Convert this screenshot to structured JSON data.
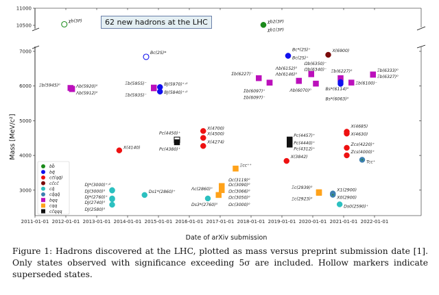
{
  "banner": "62 new hadrons at the LHC",
  "caption": "Figure 1: Hadrons discovered at the LHC, plotted as mass versus preprint submission date [1]. Only states observed with significance exceeding 5σ are included. Hollow markers indicate superseded states.",
  "chart_data": {
    "type": "scatter",
    "title": "",
    "xlabel": "Date of arXiv submission",
    "ylabel": "Mass [MeV/c²]",
    "x_ticks": [
      "2011-01-01",
      "2012-01-01",
      "2013-01-01",
      "2014-01-01",
      "2015-01-01",
      "2016-01-01",
      "2017-01-01",
      "2018-01-01",
      "2019-01-01",
      "2020-01-01",
      "2021-01-01",
      "2022-01-01"
    ],
    "y_ticks_main": [
      3000,
      4000,
      5000,
      6000,
      7000
    ],
    "y_ticks_top": [
      10500,
      11000
    ],
    "xlim": [
      2011.0,
      2022.5
    ],
    "ylim_main": [
      2270,
      7050
    ],
    "ylim_top": [
      10300,
      11000
    ],
    "broken_axis": true,
    "legend_position": "lower-left",
    "categories": [
      {
        "key": "bb",
        "label": "bb̄",
        "color": "#1a8a1a",
        "shape": "circle"
      },
      {
        "key": "bq",
        "label": "bq̄",
        "color": "#1010ee",
        "shape": "circle"
      },
      {
        "key": "ccqq",
        "label": "cc̄(qq̄)",
        "color": "#ee1111",
        "shape": "circle"
      },
      {
        "key": "cccc",
        "label": "cc̄cc̄",
        "color": "#7a0a0a",
        "shape": "circle"
      },
      {
        "key": "cq",
        "label": "cq̄",
        "color": "#2cc0c0",
        "shape": "circle"
      },
      {
        "key": "cqqq",
        "label": "cq̄qq̄",
        "color": "#3d7fb0",
        "shape": "circle"
      },
      {
        "key": "bqq",
        "label": "bqq",
        "color": "#bb10bb",
        "shape": "square"
      },
      {
        "key": "cqq",
        "label": "cqq",
        "color": "#ffa21a",
        "shape": "square"
      },
      {
        "key": "ccqqq",
        "label": "cc̄qqq",
        "color": "#111111",
        "shape": "square"
      }
    ],
    "points": [
      {
        "cat": "bb",
        "date": 2011.95,
        "mass": 10530,
        "hollow": true,
        "label": "χb(3P)",
        "lx": 6,
        "ly": -3
      },
      {
        "cat": "bb",
        "date": 2018.4,
        "mass": 10512,
        "hollow": false,
        "label": "χb2(3P)",
        "lx": 6,
        "ly": -3
      },
      {
        "cat": "bb",
        "date": 2018.4,
        "mass": 10513,
        "hollow": false,
        "label": "χb1(3P)",
        "lx": 6,
        "ly": 9
      },
      {
        "cat": "bqq",
        "date": 2012.15,
        "mass": 5945,
        "hollow": false,
        "label": "Ξb(5945)⁰",
        "lx": -46,
        "ly": -2
      },
      {
        "cat": "bqq",
        "date": 2012.2,
        "mass": 5920,
        "hollow": false,
        "label": "Λb(5920)⁰",
        "lx": 6,
        "ly": -2
      },
      {
        "cat": "bqq",
        "date": 2012.2,
        "mass": 5912,
        "hollow": false,
        "label": "Λb(5912)⁰",
        "lx": 6,
        "ly": 8
      },
      {
        "cat": "bqq",
        "date": 2014.85,
        "mass": 5955,
        "hollow": false,
        "label": "Ξb(5955)⁻",
        "lx": -42,
        "ly": -4
      },
      {
        "cat": "bqq",
        "date": 2014.85,
        "mass": 5935,
        "hollow": false,
        "label": "Ξb(5935)⁻",
        "lx": -42,
        "ly": 12
      },
      {
        "cat": "bq",
        "date": 2014.6,
        "mass": 6842,
        "hollow": true,
        "label": "Bc(2S)*",
        "lx": 6,
        "ly": -4
      },
      {
        "cat": "bq",
        "date": 2015.05,
        "mass": 5970,
        "hollow": false,
        "label": "BJ(5970)⁺˒⁰",
        "lx": 6,
        "ly": -2
      },
      {
        "cat": "bq",
        "date": 2015.05,
        "mass": 5840,
        "hollow": false,
        "label": "BJ(5840)⁺˒⁰",
        "lx": 6,
        "ly": 3
      },
      {
        "cat": "ccqq",
        "date": 2013.73,
        "mass": 4146,
        "hollow": false,
        "label": "X(4140)",
        "lx": 6,
        "ly": -2
      },
      {
        "cat": "ccqqq",
        "date": 2015.6,
        "mass": 4450,
        "hollow": true,
        "label": "Pc(4450)⁺",
        "lx": -26,
        "ly": -8
      },
      {
        "cat": "ccqqq",
        "date": 2015.6,
        "mass": 4380,
        "hollow": false,
        "label": "Pc(4380)⁺",
        "lx": -26,
        "ly": 12
      },
      {
        "cat": "ccqq",
        "date": 2016.45,
        "mass": 4704,
        "hollow": false,
        "label": "X(4700)",
        "lx": 6,
        "ly": -2
      },
      {
        "cat": "ccqq",
        "date": 2016.45,
        "mass": 4506,
        "hollow": false,
        "label": "X(4500)",
        "lx": 6,
        "ly": -4
      },
      {
        "cat": "ccqq",
        "date": 2016.45,
        "mass": 4273,
        "hollow": false,
        "label": "X(4274)",
        "lx": 6,
        "ly": -4
      },
      {
        "cat": "cq",
        "date": 2013.5,
        "mass": 3000,
        "hollow": false,
        "label": "DJ*(3000)⁺˒⁰",
        "lx": -40,
        "ly": -6
      },
      {
        "cat": "cq",
        "date": 2013.5,
        "mass": 2990,
        "hollow": false,
        "label": "DJ(3000)⁰",
        "lx": -40,
        "ly": 3
      },
      {
        "cat": "cq",
        "date": 2013.5,
        "mass": 2760,
        "hollow": false,
        "label": "DJ*(2760)⁺",
        "lx": -40,
        "ly": -2
      },
      {
        "cat": "cq",
        "date": 2013.5,
        "mass": 2740,
        "hollow": false,
        "label": "DJ(2740)⁰",
        "lx": -40,
        "ly": 7
      },
      {
        "cat": "cq",
        "date": 2013.5,
        "mass": 2580,
        "hollow": false,
        "label": "DJ(2580)⁰",
        "lx": -40,
        "ly": 9
      },
      {
        "cat": "cq",
        "date": 2014.55,
        "mass": 2860,
        "hollow": false,
        "label": "Ds1*(2860)⁺",
        "lx": 6,
        "ly": -3
      },
      {
        "cat": "cq",
        "date": 2016.6,
        "mass": 2760,
        "hollow": false,
        "label": "Ds3*(2760)⁰",
        "lx": -24,
        "ly": 11
      },
      {
        "cqq": true,
        "cat": "cqq",
        "date": 2016.6,
        "mass": 2860,
        "hollow": false,
        "label": "Λc(2860)⁺",
        "lx": -24,
        "ly": -7,
        "nomark": true
      },
      {
        "cat": "cqq",
        "date": 2017.05,
        "mass": 3119,
        "hollow": false,
        "label": "Ωc(3119)⁰",
        "lx": 10,
        "ly": -7
      },
      {
        "cat": "cqq",
        "date": 2017.05,
        "mass": 3090,
        "hollow": false,
        "label": "Ωc(3090)⁰",
        "lx": 10,
        "ly": -1
      },
      {
        "cat": "cqq",
        "date": 2017.05,
        "mass": 3066,
        "hollow": false,
        "label": "Ωc(3066)⁰",
        "lx": 10,
        "ly": 5
      },
      {
        "cat": "cqq",
        "date": 2017.05,
        "mass": 3050,
        "hollow": false,
        "label": "Ωc(3050)⁰",
        "lx": 10,
        "ly": 13
      },
      {
        "cat": "cqq",
        "date": 2017.05,
        "mass": 3000,
        "hollow": false,
        "label": "Ωc(3000)⁰",
        "lx": 10,
        "ly": 23
      },
      {
        "cat": "cqq",
        "date": 2016.95,
        "mass": 2860,
        "hollow": false,
        "label": "",
        "lx": 0,
        "ly": 0
      },
      {
        "cat": "cqq",
        "date": 2017.5,
        "mass": 3621,
        "hollow": false,
        "label": "Ξcc⁺⁺",
        "lx": 6,
        "ly": -3
      },
      {
        "cat": "ccqq",
        "date": 2019.15,
        "mass": 3842,
        "hollow": false,
        "label": "X(3842)",
        "lx": 6,
        "ly": -4
      },
      {
        "cat": "ccqqq",
        "date": 2019.25,
        "mass": 4457,
        "hollow": false,
        "label": "Pc(4457)⁺",
        "lx": 6,
        "ly": -4
      },
      {
        "cat": "ccqqq",
        "date": 2019.25,
        "mass": 4440,
        "hollow": false,
        "label": "Pc(4440)⁺",
        "lx": 6,
        "ly": 6
      },
      {
        "cat": "ccqqq",
        "date": 2019.25,
        "mass": 4312,
        "hollow": false,
        "label": "Pc(4312)⁺",
        "lx": 6,
        "ly": 4
      },
      {
        "cat": "ccqq",
        "date": 2021.1,
        "mass": 4684,
        "hollow": false,
        "label": "X(4685)",
        "lx": 6,
        "ly": -6
      },
      {
        "cat": "ccqq",
        "date": 2021.1,
        "mass": 4630,
        "hollow": false,
        "label": "X(4630)",
        "lx": 6,
        "ly": 3
      },
      {
        "cat": "ccqq",
        "date": 2021.1,
        "mass": 4220,
        "hollow": false,
        "label": "Zcs(4220)⁺",
        "lx": 6,
        "ly": -3
      },
      {
        "cat": "ccqq",
        "date": 2021.1,
        "mass": 4003,
        "hollow": false,
        "label": "Zcs(4000)⁺",
        "lx": 6,
        "ly": -3
      },
      {
        "cat": "cqqq",
        "date": 2021.6,
        "mass": 3875,
        "hollow": false,
        "label": "Tcc⁺",
        "lx": 6,
        "ly": 5
      },
      {
        "cat": "cqq",
        "date": 2020.2,
        "mass": 2939,
        "hollow": false,
        "label": "Ξc(2939)⁰",
        "lx": -40,
        "ly": -5
      },
      {
        "cat": "cqq",
        "date": 2020.2,
        "mass": 2923,
        "hollow": false,
        "label": "Ξc(2923)⁰",
        "lx": -40,
        "ly": 11
      },
      {
        "cat": "cqqq",
        "date": 2020.65,
        "mass": 2904,
        "hollow": false,
        "label": "X1(2900)",
        "lx": 6,
        "ly": -3
      },
      {
        "cat": "cqqq",
        "date": 2020.65,
        "mass": 2866,
        "hollow": false,
        "label": "X0(2900)",
        "lx": 6,
        "ly": 6
      },
      {
        "cat": "cq",
        "date": 2020.87,
        "mass": 2591,
        "hollow": false,
        "label": "Ds0(2590)⁺",
        "lx": 6,
        "ly": 5
      },
      {
        "cat": "bq",
        "date": 2019.2,
        "mass": 6872,
        "hollow": false,
        "label": "Bc*(2S)⁺",
        "lx": 6,
        "ly": -7
      },
      {
        "cat": "bq",
        "date": 2019.2,
        "mass": 6871,
        "hollow": false,
        "label": "Bc(2S)⁺",
        "lx": 6,
        "ly": 5
      },
      {
        "cat": "cccc",
        "date": 2020.5,
        "mass": 6900,
        "hollow": false,
        "label": "X(6900)",
        "lx": 6,
        "ly": -4
      },
      {
        "cat": "bqq",
        "date": 2018.25,
        "mass": 6227,
        "hollow": false,
        "label": "Σb(6227)⁻",
        "lx": -40,
        "ly": -4
      },
      {
        "cat": "bqq",
        "date": 2018.6,
        "mass": 6097,
        "hollow": false,
        "label": "Σb(6097)⁺",
        "lx": -38,
        "ly": 14
      },
      {
        "cat": "bqq",
        "date": 2018.6,
        "mass": 6098,
        "hollow": false,
        "label": "Σb(6097)⁻",
        "lx": -38,
        "ly": 24
      },
      {
        "cat": "bqq",
        "date": 2019.55,
        "mass": 6152,
        "hollow": false,
        "label": "Λb(6152)⁰",
        "lx": -34,
        "ly": -16
      },
      {
        "cat": "bqq",
        "date": 2019.55,
        "mass": 6146,
        "hollow": false,
        "label": "Λb(6146)⁰",
        "lx": -34,
        "ly": -8
      },
      {
        "cat": "bqq",
        "date": 2019.95,
        "mass": 6350,
        "hollow": false,
        "label": "Ωb(6350)⁻",
        "lx": -10,
        "ly": -15
      },
      {
        "cat": "bqq",
        "date": 2019.95,
        "mass": 6340,
        "hollow": false,
        "label": "Ωb(6340)⁻",
        "lx": -10,
        "ly": -7
      },
      {
        "cat": "bqq",
        "date": 2020.1,
        "mass": 6070,
        "hollow": false,
        "label": "Λb(6070)⁰",
        "lx": -38,
        "ly": 12
      },
      {
        "cat": "bqq",
        "date": 2020.9,
        "mass": 6227,
        "hollow": false,
        "label": "Ξb(6227)⁰",
        "lx": -14,
        "ly": -8
      },
      {
        "cat": "bq",
        "date": 2020.9,
        "mass": 6114,
        "hollow": false,
        "label": "Bs*(6114)⁰",
        "lx": -22,
        "ly": 12
      },
      {
        "cat": "bq",
        "date": 2020.9,
        "mass": 6063,
        "hollow": false,
        "label": "Bs*(6063)⁰",
        "lx": -22,
        "ly": 24
      },
      {
        "cat": "bqq",
        "date": 2021.25,
        "mass": 6100,
        "hollow": false,
        "label": "Ξb(6100)⁻",
        "lx": 6,
        "ly": 3
      },
      {
        "cat": "bqq",
        "date": 2021.95,
        "mass": 6333,
        "hollow": false,
        "label": "Ξb(6333)⁰",
        "lx": 6,
        "ly": -4
      },
      {
        "cat": "bqq",
        "date": 2021.95,
        "mass": 6327,
        "hollow": false,
        "label": "Ξb(6327)⁰",
        "lx": 6,
        "ly": 5
      }
    ]
  }
}
